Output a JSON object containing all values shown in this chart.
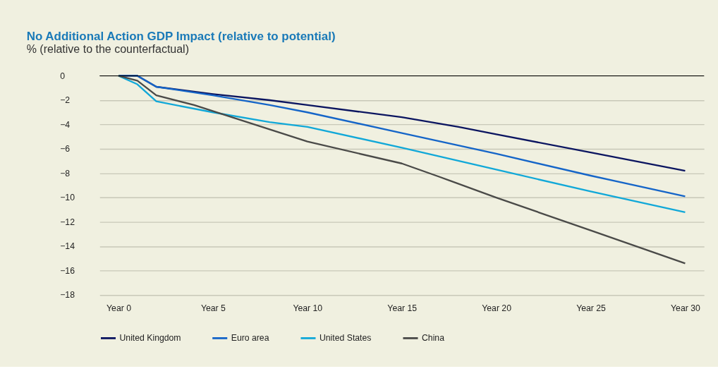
{
  "chart_data": {
    "type": "line",
    "title": "No Additional Action GDP Impact (relative to potential)",
    "subtitle": "% (relative to the counterfactual)",
    "categories": [
      "Year 0",
      null,
      null,
      null,
      null,
      "Year 5",
      null,
      null,
      null,
      null,
      "Year 10",
      null,
      null,
      null,
      null,
      "Year 15",
      null,
      null,
      null,
      null,
      "Year 20",
      null,
      null,
      null,
      null,
      "Year 25",
      null,
      null,
      null,
      null,
      "Year 30"
    ],
    "ylim": [
      -18,
      0
    ],
    "yticks": [
      0,
      -2,
      -4,
      -6,
      -8,
      -10,
      -12,
      -14,
      -16,
      -18
    ],
    "grid": "y",
    "legend": "bottom",
    "line_style": "solid",
    "marker": "none",
    "ref_lines": [
      {
        "axis": "y",
        "value": 0,
        "color": "#000000"
      }
    ],
    "series": [
      {
        "name": "United Kingdom",
        "color": "#0b1560",
        "values": [
          0,
          0,
          -0.9,
          null,
          null,
          -1.5,
          null,
          null,
          -2.0,
          null,
          -2.4,
          null,
          null,
          null,
          null,
          -3.4,
          null,
          null,
          -4.2,
          null,
          -4.8,
          null,
          null,
          null,
          null,
          -6.3,
          null,
          null,
          null,
          null,
          -7.8
        ]
      },
      {
        "name": "Euro area",
        "color": "#1565c8",
        "values": [
          0,
          0,
          -0.9,
          null,
          null,
          -1.6,
          null,
          null,
          -2.4,
          null,
          -3.0,
          null,
          null,
          null,
          null,
          -4.7,
          null,
          null,
          null,
          null,
          -6.4,
          null,
          null,
          null,
          null,
          -8.2,
          null,
          null,
          null,
          null,
          -9.9
        ]
      },
      {
        "name": "United States",
        "color": "#11a8d8",
        "values": [
          0,
          -0.7,
          -2.1,
          null,
          null,
          -3.0,
          null,
          null,
          -3.8,
          null,
          -4.2,
          null,
          null,
          null,
          null,
          -5.9,
          null,
          null,
          null,
          null,
          -7.7,
          null,
          null,
          null,
          null,
          -9.5,
          null,
          null,
          null,
          null,
          -11.2
        ]
      },
      {
        "name": "China",
        "color": "#4a4a48",
        "values": [
          0,
          -0.4,
          -1.6,
          null,
          -2.4,
          null,
          null,
          null,
          null,
          null,
          -5.4,
          null,
          null,
          null,
          null,
          -7.2,
          null,
          -8.3,
          null,
          null,
          -10.0,
          null,
          null,
          null,
          null,
          -12.7,
          null,
          null,
          null,
          null,
          -15.4
        ]
      }
    ]
  }
}
